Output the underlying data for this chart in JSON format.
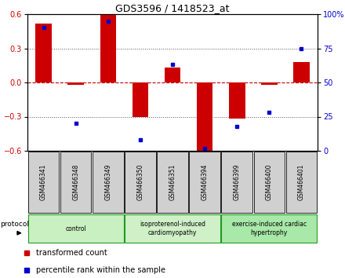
{
  "title": "GDS3596 / 1418523_at",
  "samples": [
    "GSM466341",
    "GSM466348",
    "GSM466349",
    "GSM466350",
    "GSM466351",
    "GSM466394",
    "GSM466399",
    "GSM466400",
    "GSM466401"
  ],
  "red_bars": [
    0.52,
    -0.02,
    0.59,
    -0.3,
    0.13,
    -0.6,
    -0.32,
    -0.02,
    0.18
  ],
  "blue_dots_pct": [
    90,
    20,
    95,
    8,
    63,
    2,
    18,
    28,
    75
  ],
  "ylim_left": [
    -0.6,
    0.6
  ],
  "ylim_right": [
    0,
    100
  ],
  "yticks_left": [
    -0.6,
    -0.3,
    0.0,
    0.3,
    0.6
  ],
  "yticks_right": [
    0,
    25,
    50,
    75,
    100
  ],
  "ytick_labels_right": [
    "0",
    "25",
    "50",
    "75",
    "100%"
  ],
  "groups": [
    {
      "label": "control",
      "start": 0,
      "end": 3,
      "color": "#c8f0c0"
    },
    {
      "label": "isoproterenol-induced\ncardiomyopathy",
      "start": 3,
      "end": 6,
      "color": "#d0f0c8"
    },
    {
      "label": "exercise-induced cardiac\nhypertrophy",
      "start": 6,
      "end": 9,
      "color": "#a8e8a8"
    }
  ],
  "bar_color": "#cc0000",
  "dot_color": "#0000cc",
  "zero_line_color": "#cc0000",
  "grid_color": "#555555",
  "sample_box_color": "#d0d0d0",
  "bg_color": "#ffffff",
  "legend_red_label": "transformed count",
  "legend_blue_label": "percentile rank within the sample",
  "protocol_label": "protocol"
}
